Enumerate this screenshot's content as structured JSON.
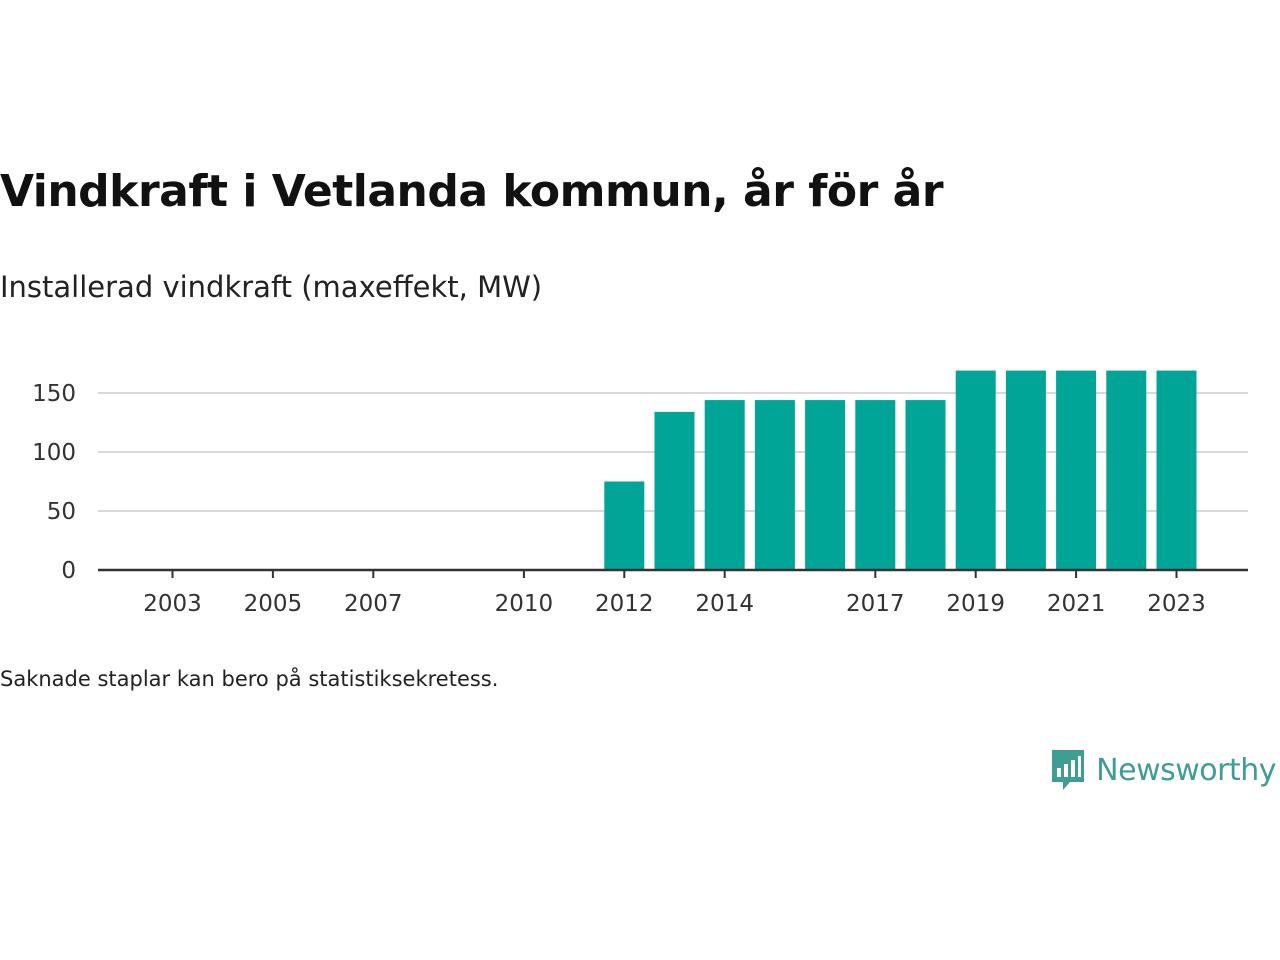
{
  "chart_data": {
    "type": "bar",
    "title": "Vindkraft i Vetlanda kommun, år för år",
    "subtitle": "Installerad vindkraft (maxeffekt, MW)",
    "categories": [
      "2003",
      "2004",
      "2005",
      "2006",
      "2007",
      "2008",
      "2009",
      "2010",
      "2011",
      "2012",
      "2013",
      "2014",
      "2015",
      "2016",
      "2017",
      "2018",
      "2019",
      "2020",
      "2021",
      "2022",
      "2023"
    ],
    "values": [
      0,
      0,
      0,
      0,
      0,
      0,
      0,
      0,
      0,
      75,
      134,
      144,
      144,
      144,
      144,
      144,
      169,
      169,
      169,
      169,
      169
    ],
    "xticks": [
      "2003",
      "2005",
      "2007",
      "2010",
      "2012",
      "2014",
      "2017",
      "2019",
      "2021",
      "2023"
    ],
    "yticks": [
      0,
      50,
      100,
      150
    ],
    "ylim": [
      0,
      172
    ],
    "grid": true,
    "bar_color": "#00a598",
    "note": "Saknade staplar kan bero på statistiksekretess."
  },
  "brand": {
    "name": "Newsworthy",
    "color": "#3f9e94",
    "icon": "newsworthy-logo-icon"
  }
}
